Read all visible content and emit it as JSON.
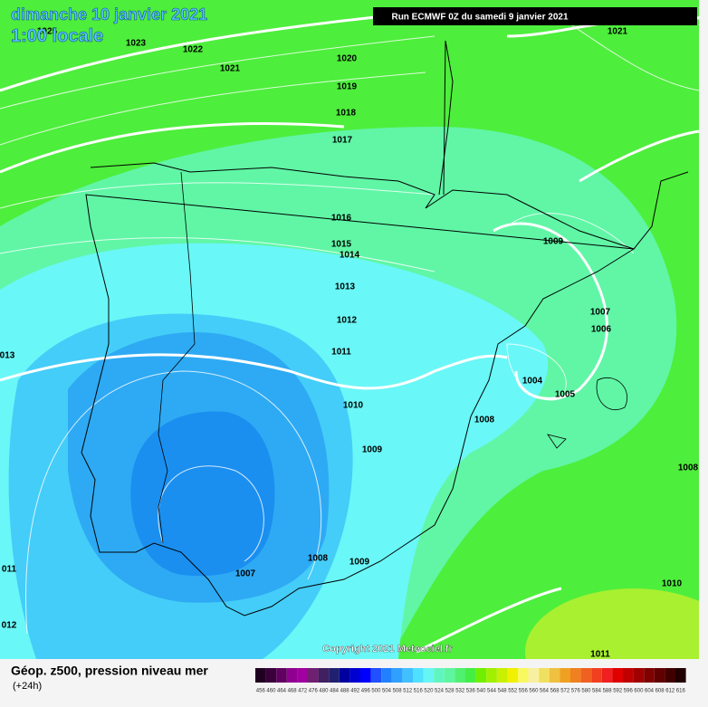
{
  "header": {
    "date": "dimanche 10 janvier 2021",
    "time": "1:00 locale",
    "run": "Run ECMWF 0Z du samedi 9 janvier 2021"
  },
  "isobar_labels": [
    "1025",
    "1023",
    "1022",
    "1021",
    "1020",
    "1019",
    "1018",
    "1017",
    "1016",
    "1015",
    "1014",
    "1013",
    "1012",
    "1011",
    "1010",
    "1009",
    "1008",
    "1009",
    "1007",
    "1006",
    "1004",
    "1005",
    "1008",
    "1009",
    "1007",
    "1021",
    "013",
    "011",
    "012",
    "1008",
    "1010",
    "1011"
  ],
  "copyright": "Copyright 2021 Meteociel.fr",
  "footer": {
    "title": "Géop. z500, pression niveau mer",
    "lead": "(+24h)"
  },
  "legend": {
    "labels": [
      456,
      460,
      464,
      468,
      472,
      476,
      480,
      484,
      488,
      492,
      496,
      500,
      504,
      508,
      512,
      516,
      520,
      524,
      528,
      532,
      536,
      540,
      544,
      548,
      552,
      556,
      560,
      564,
      568,
      572,
      576,
      580,
      584,
      588,
      592,
      596,
      600,
      604,
      608,
      612,
      616
    ],
    "colors": [
      "#200020",
      "#3a003a",
      "#600060",
      "#900090",
      "#a000a0",
      "#702070",
      "#402060",
      "#202070",
      "#0000a0",
      "#0000d0",
      "#0000ff",
      "#2050ff",
      "#2080ff",
      "#30a0ff",
      "#40c0ff",
      "#50e0ff",
      "#66f5f5",
      "#60f5c0",
      "#5ff5a0",
      "#50f070",
      "#44ee44",
      "#70f000",
      "#a0f000",
      "#c8f000",
      "#f0f000",
      "#f8f860",
      "#f8f0a0",
      "#f0e060",
      "#f0c040",
      "#f0a020",
      "#f08020",
      "#f06020",
      "#f04020",
      "#f02020",
      "#e00000",
      "#c00000",
      "#a00000",
      "#800000",
      "#600000",
      "#400000",
      "#200000"
    ]
  }
}
